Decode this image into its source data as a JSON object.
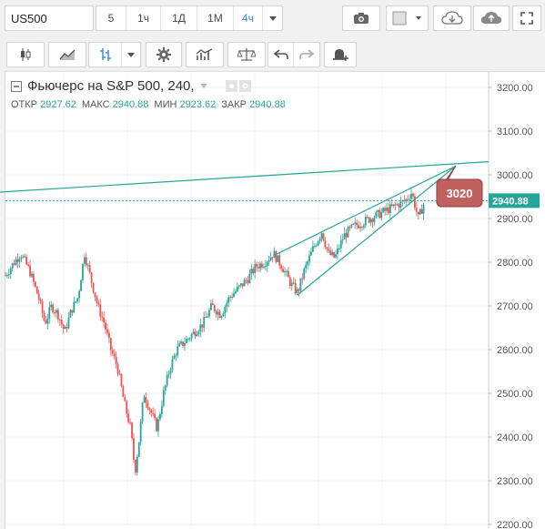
{
  "toolbar": {
    "symbol": "US500",
    "timeframes": [
      "5",
      "1ч",
      "1Д",
      "1М",
      "4ч"
    ],
    "active_timeframe": "4ч"
  },
  "legend": {
    "title": "Фьючерс на S&P 500, 240,",
    "open_label": "ОТКР",
    "open_value": "2927.62",
    "high_label": "МАКС",
    "high_value": "2940.88",
    "low_label": "МИН",
    "low_value": "2923.62",
    "close_label": "ЗАКР",
    "close_value": "2940.88"
  },
  "price_axis": {
    "ticks": [
      "3200.00",
      "3100.00",
      "3000.00",
      "2900.00",
      "2800.00",
      "2700.00",
      "2600.00",
      "2500.00",
      "2400.00",
      "2300.00",
      "2200.00"
    ],
    "current_price": "2940.88",
    "current_price_value": 2940.88
  },
  "annotation": {
    "label": "3020"
  },
  "colors": {
    "up": "#26a69a",
    "down": "#ef5350",
    "line": "#26a69a",
    "callout": "#c0605f",
    "accent": "#3b8ed8"
  },
  "chart_data": {
    "type": "candlestick",
    "symbol": "US500",
    "interval": "240",
    "ylim": [
      2200,
      3200
    ],
    "price_path": [
      [
        0,
        2770
      ],
      [
        4,
        2800
      ],
      [
        7,
        2820
      ],
      [
        11,
        2780
      ],
      [
        15,
        2720
      ],
      [
        18,
        2660
      ],
      [
        21,
        2700
      ],
      [
        24,
        2680
      ],
      [
        27,
        2640
      ],
      [
        30,
        2690
      ],
      [
        33,
        2720
      ],
      [
        36,
        2820
      ],
      [
        39,
        2760
      ],
      [
        42,
        2700
      ],
      [
        45,
        2660
      ],
      [
        48,
        2600
      ],
      [
        51,
        2560
      ],
      [
        54,
        2480
      ],
      [
        57,
        2420
      ],
      [
        59,
        2320
      ],
      [
        61,
        2400
      ],
      [
        63,
        2500
      ],
      [
        66,
        2460
      ],
      [
        69,
        2420
      ],
      [
        72,
        2500
      ],
      [
        75,
        2560
      ],
      [
        78,
        2600
      ],
      [
        82,
        2620
      ],
      [
        86,
        2640
      ],
      [
        90,
        2660
      ],
      [
        94,
        2700
      ],
      [
        98,
        2680
      ],
      [
        102,
        2720
      ],
      [
        106,
        2740
      ],
      [
        110,
        2760
      ],
      [
        114,
        2790
      ],
      [
        118,
        2800
      ],
      [
        122,
        2820
      ],
      [
        126,
        2790
      ],
      [
        130,
        2750
      ],
      [
        133,
        2730
      ],
      [
        136,
        2780
      ],
      [
        140,
        2830
      ],
      [
        144,
        2870
      ],
      [
        147,
        2820
      ],
      [
        150,
        2810
      ],
      [
        154,
        2860
      ],
      [
        158,
        2880
      ],
      [
        162,
        2890
      ],
      [
        166,
        2900
      ],
      [
        170,
        2910
      ],
      [
        174,
        2920
      ],
      [
        178,
        2930
      ],
      [
        182,
        2940
      ],
      [
        185,
        2960
      ],
      [
        188,
        2900
      ],
      [
        191,
        2940
      ]
    ],
    "x_max": 220,
    "trendlines": [
      {
        "x1": -10,
        "y1": 2958,
        "x2": 220,
        "y2": 3030
      },
      {
        "x1": 122,
        "y1": 2815,
        "x2": 205,
        "y2": 3020
      },
      {
        "x1": 133,
        "y1": 2725,
        "x2": 205,
        "y2": 3020
      }
    ],
    "price_line": 2940.88,
    "callout_anchor": {
      "x": 205,
      "y": 3020
    }
  }
}
